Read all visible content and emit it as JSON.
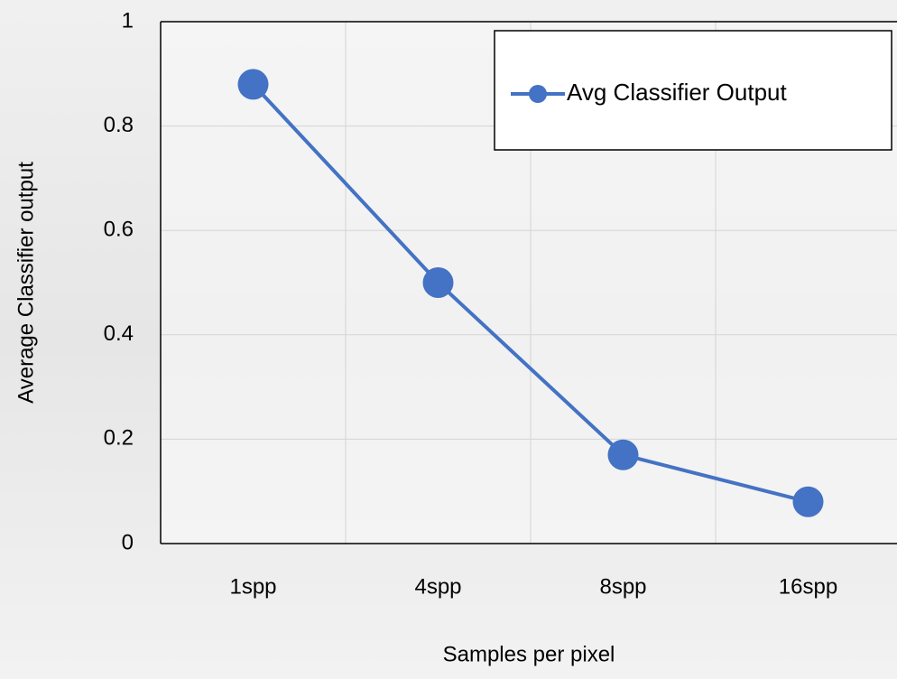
{
  "chart_data": {
    "type": "line",
    "x_label": "Samples per pixel",
    "y_label": "Average Classifier output",
    "categories": [
      "1spp",
      "4spp",
      "8spp",
      "16spp"
    ],
    "series": [
      {
        "name": "Avg Classifier Output",
        "color": "#4472c4",
        "values": [
          0.88,
          0.5,
          0.17,
          0.08
        ]
      }
    ],
    "ylim": [
      0,
      1
    ],
    "yticks": [
      0,
      0.2,
      0.4,
      0.6,
      0.8,
      1
    ],
    "grid": true,
    "legend": "upper right"
  }
}
